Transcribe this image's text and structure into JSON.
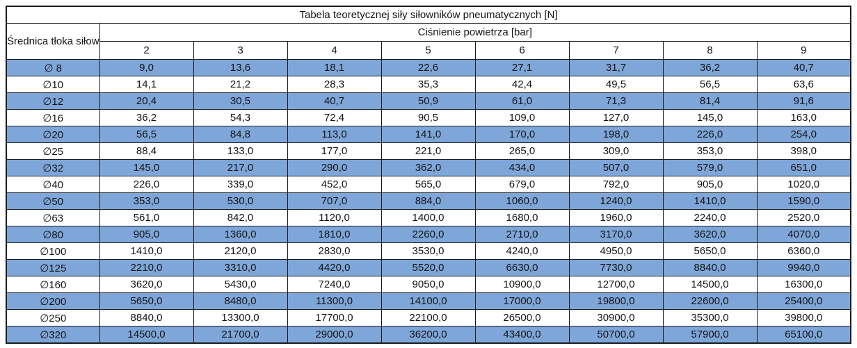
{
  "title": "Tabela teoretycznej siły siłowników pneumatycznych [N]",
  "row_header": "Średnica tłoka siłownika",
  "col_group_header": "Ciśnienie powietrza [bar]",
  "pressures": [
    "2",
    "3",
    "4",
    "5",
    "6",
    "7",
    "8",
    "9"
  ],
  "rows": [
    {
      "diameter": "∅ 8",
      "stripe": true,
      "values": [
        "9,0",
        "13,6",
        "18,1",
        "22,6",
        "27,1",
        "31,7",
        "36,2",
        "40,7"
      ]
    },
    {
      "diameter": "∅10",
      "stripe": false,
      "values": [
        "14,1",
        "21,2",
        "28,3",
        "35,3",
        "42,4",
        "49,5",
        "56,5",
        "63,6"
      ]
    },
    {
      "diameter": "∅12",
      "stripe": true,
      "values": [
        "20,4",
        "30,5",
        "40,7",
        "50,9",
        "61,0",
        "71,3",
        "81,4",
        "91,6"
      ]
    },
    {
      "diameter": "∅16",
      "stripe": false,
      "values": [
        "36,2",
        "54,3",
        "72,4",
        "90,5",
        "109,0",
        "127,0",
        "145,0",
        "163,0"
      ]
    },
    {
      "diameter": "∅20",
      "stripe": true,
      "values": [
        "56,5",
        "84,8",
        "113,0",
        "141,0",
        "170,0",
        "198,0",
        "226,0",
        "254,0"
      ]
    },
    {
      "diameter": "∅25",
      "stripe": false,
      "values": [
        "88,4",
        "133,0",
        "177,0",
        "221,0",
        "265,0",
        "309,0",
        "353,0",
        "398,0"
      ]
    },
    {
      "diameter": "∅32",
      "stripe": true,
      "values": [
        "145,0",
        "217,0",
        "290,0",
        "362,0",
        "434,0",
        "507,0",
        "579,0",
        "651,0"
      ]
    },
    {
      "diameter": "∅40",
      "stripe": false,
      "values": [
        "226,0",
        "339,0",
        "452,0",
        "565,0",
        "679,0",
        "792,0",
        "905,0",
        "1020,0"
      ]
    },
    {
      "diameter": "∅50",
      "stripe": true,
      "values": [
        "353,0",
        "530,0",
        "707,0",
        "884,0",
        "1060,0",
        "1240,0",
        "1410,0",
        "1590,0"
      ]
    },
    {
      "diameter": "∅63",
      "stripe": false,
      "values": [
        "561,0",
        "842,0",
        "1120,0",
        "1400,0",
        "1680,0",
        "1960,0",
        "2240,0",
        "2520,0"
      ]
    },
    {
      "diameter": "∅80",
      "stripe": true,
      "values": [
        "905,0",
        "1360,0",
        "1810,0",
        "2260,0",
        "2710,0",
        "3170,0",
        "3620,0",
        "4070,0"
      ]
    },
    {
      "diameter": "∅100",
      "stripe": false,
      "values": [
        "1410,0",
        "2120,0",
        "2830,0",
        "3530,0",
        "4240,0",
        "4950,0",
        "5650,0",
        "6360,0"
      ]
    },
    {
      "diameter": "∅125",
      "stripe": true,
      "values": [
        "2210,0",
        "3310,0",
        "4420,0",
        "5520,0",
        "6630,0",
        "7730,0",
        "8840,0",
        "9940,0"
      ]
    },
    {
      "diameter": "∅160",
      "stripe": false,
      "values": [
        "3620,0",
        "5430,0",
        "7240,0",
        "9050,0",
        "10900,0",
        "12700,0",
        "14500,0",
        "16300,0"
      ]
    },
    {
      "diameter": "∅200",
      "stripe": true,
      "values": [
        "5650,0",
        "8480,0",
        "11300,0",
        "14100,0",
        "17000,0",
        "19800,0",
        "22600,0",
        "25400,0"
      ]
    },
    {
      "diameter": "∅250",
      "stripe": false,
      "values": [
        "8840,0",
        "13300,0",
        "17700,0",
        "22100,0",
        "26500,0",
        "30900,0",
        "35300,0",
        "39800,0"
      ]
    },
    {
      "diameter": "∅320",
      "stripe": true,
      "values": [
        "14500,0",
        "21700,0",
        "29000,0",
        "36200,0",
        "43400,0",
        "50700,0",
        "57900,0",
        "65100,0"
      ]
    }
  ],
  "colors": {
    "stripe_blue": "#7EA6D9",
    "border": "#1c1c1c",
    "text": "#141414",
    "background": "#ffffff"
  },
  "chart_data": {
    "type": "table",
    "title": "Tabela teoretycznej siły siłowników pneumatycznych [N]",
    "row_label": "Średnica tłoka siłownika",
    "column_group_label": "Ciśnienie powietrza [bar]",
    "columns_bar": [
      2,
      3,
      4,
      5,
      6,
      7,
      8,
      9
    ],
    "series": [
      {
        "name": "∅ 8",
        "values": [
          9.0,
          13.6,
          18.1,
          22.6,
          27.1,
          31.7,
          36.2,
          40.7
        ]
      },
      {
        "name": "∅10",
        "values": [
          14.1,
          21.2,
          28.3,
          35.3,
          42.4,
          49.5,
          56.5,
          63.6
        ]
      },
      {
        "name": "∅12",
        "values": [
          20.4,
          30.5,
          40.7,
          50.9,
          61.0,
          71.3,
          81.4,
          91.6
        ]
      },
      {
        "name": "∅16",
        "values": [
          36.2,
          54.3,
          72.4,
          90.5,
          109.0,
          127.0,
          145.0,
          163.0
        ]
      },
      {
        "name": "∅20",
        "values": [
          56.5,
          84.8,
          113.0,
          141.0,
          170.0,
          198.0,
          226.0,
          254.0
        ]
      },
      {
        "name": "∅25",
        "values": [
          88.4,
          133.0,
          177.0,
          221.0,
          265.0,
          309.0,
          353.0,
          398.0
        ]
      },
      {
        "name": "∅32",
        "values": [
          145.0,
          217.0,
          290.0,
          362.0,
          434.0,
          507.0,
          579.0,
          651.0
        ]
      },
      {
        "name": "∅40",
        "values": [
          226.0,
          339.0,
          452.0,
          565.0,
          679.0,
          792.0,
          905.0,
          1020.0
        ]
      },
      {
        "name": "∅50",
        "values": [
          353.0,
          530.0,
          707.0,
          884.0,
          1060.0,
          1240.0,
          1410.0,
          1590.0
        ]
      },
      {
        "name": "∅63",
        "values": [
          561.0,
          842.0,
          1120.0,
          1400.0,
          1680.0,
          1960.0,
          2240.0,
          2520.0
        ]
      },
      {
        "name": "∅80",
        "values": [
          905.0,
          1360.0,
          1810.0,
          2260.0,
          2710.0,
          3170.0,
          3620.0,
          4070.0
        ]
      },
      {
        "name": "∅100",
        "values": [
          1410.0,
          2120.0,
          2830.0,
          3530.0,
          4240.0,
          4950.0,
          5650.0,
          6360.0
        ]
      },
      {
        "name": "∅125",
        "values": [
          2210.0,
          3310.0,
          4420.0,
          5520.0,
          6630.0,
          7730.0,
          8840.0,
          9940.0
        ]
      },
      {
        "name": "∅160",
        "values": [
          3620.0,
          5430.0,
          7240.0,
          9050.0,
          10900.0,
          12700.0,
          14500.0,
          16300.0
        ]
      },
      {
        "name": "∅200",
        "values": [
          5650.0,
          8480.0,
          11300.0,
          14100.0,
          17000.0,
          19800.0,
          22600.0,
          25400.0
        ]
      },
      {
        "name": "∅250",
        "values": [
          8840.0,
          13300.0,
          17700.0,
          22100.0,
          26500.0,
          30900.0,
          35300.0,
          39800.0
        ]
      },
      {
        "name": "∅320",
        "values": [
          14500.0,
          21700.0,
          29000.0,
          36200.0,
          43400.0,
          50700.0,
          57900.0,
          65100.0
        ]
      }
    ]
  }
}
